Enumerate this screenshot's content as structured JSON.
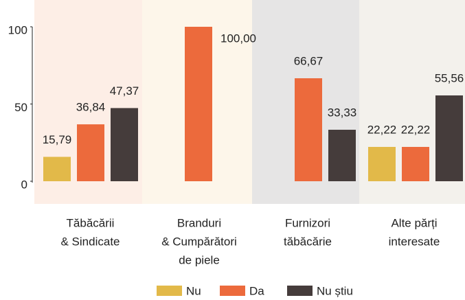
{
  "chart_data": {
    "type": "bar",
    "categories": [
      [
        "Tăbăcării",
        "& Sindicate"
      ],
      [
        "Branduri",
        "& Cumpărători",
        "de piele"
      ],
      [
        "Furnizori",
        "tăbăcărie"
      ],
      [
        "Alte părți",
        "interesate"
      ]
    ],
    "panel_colors": [
      "#fdeee6",
      "#fdf6ea",
      "#e6e5e5",
      "#f3f1ec"
    ],
    "series": [
      {
        "name": "Nu",
        "color": "#e2b949",
        "values": [
          15.79,
          null,
          null,
          22.22
        ],
        "value_labels": [
          "15,79",
          null,
          null,
          "22,22"
        ]
      },
      {
        "name": "Da",
        "color": "#ec6a3c",
        "values": [
          36.84,
          100,
          66.67,
          22.22
        ],
        "value_labels": [
          "36,84",
          "100,00",
          "66,67",
          "22,22"
        ]
      },
      {
        "name": "Nu știu",
        "color": "#453c3b",
        "values": [
          47.37,
          null,
          33.33,
          55.56
        ],
        "value_labels": [
          "47,37",
          null,
          "33,33",
          "55,56"
        ]
      }
    ],
    "ylim": [
      0,
      100
    ],
    "yticks": [
      0,
      50,
      100
    ],
    "legend": "bottom"
  }
}
